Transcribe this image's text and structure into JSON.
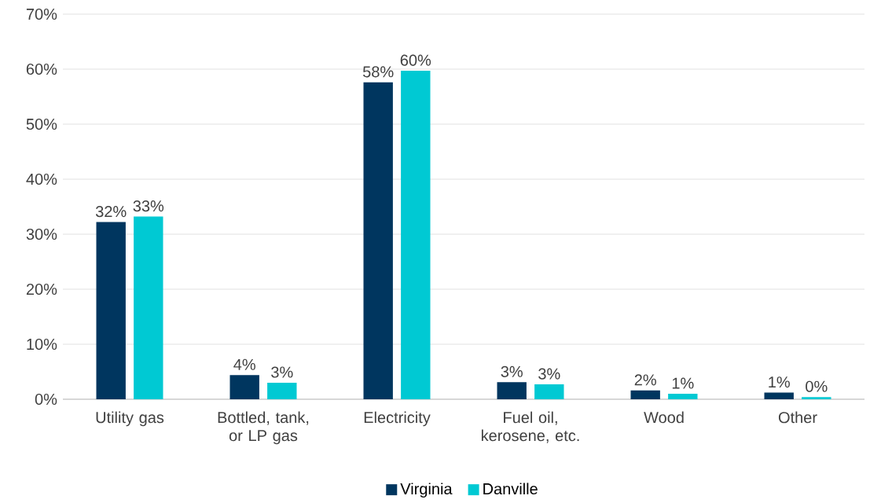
{
  "chart_data": {
    "type": "bar",
    "categories": [
      "Utility gas",
      "Bottled, tank, or LP gas",
      "Electricity",
      "Fuel oil, kerosene, etc.",
      "Wood",
      "Other"
    ],
    "series": [
      {
        "name": "Virginia",
        "color": "#00365f",
        "values": [
          32.2,
          4.4,
          57.6,
          3.1,
          1.6,
          1.2
        ],
        "value_labels": [
          "32%",
          "4%",
          "58%",
          "3%",
          "2%",
          "1%"
        ]
      },
      {
        "name": "Danville",
        "color": "#00c9d3",
        "values": [
          33.2,
          3.0,
          59.7,
          2.7,
          1.0,
          0.4
        ],
        "value_labels": [
          "33%",
          "3%",
          "60%",
          "3%",
          "1%",
          "0%"
        ]
      }
    ],
    "ylim": [
      0,
      70
    ],
    "yticks": [
      {
        "value": 0,
        "label": "0%"
      },
      {
        "value": 10,
        "label": "10%"
      },
      {
        "value": 20,
        "label": "20%"
      },
      {
        "value": 30,
        "label": "30%"
      },
      {
        "value": 40,
        "label": "40%"
      },
      {
        "value": 50,
        "label": "50%"
      },
      {
        "value": 60,
        "label": "60%"
      },
      {
        "value": 70,
        "label": "70%"
      }
    ],
    "grid": "y",
    "legend": "bottom"
  }
}
